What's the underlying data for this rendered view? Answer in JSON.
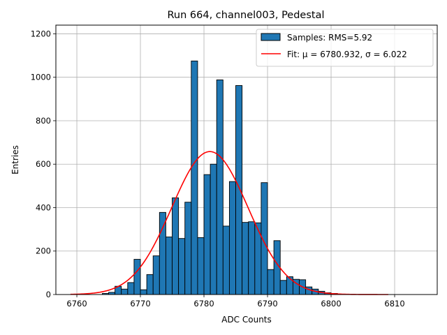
{
  "chart_data": {
    "type": "histogram",
    "title": "Run 664, channel003, Pedestal",
    "xlabel": "ADC Counts",
    "ylabel": "Entries",
    "xlim": [
      6756.7,
      6816.7
    ],
    "ylim": [
      0,
      1240
    ],
    "xticks": [
      6760,
      6770,
      6780,
      6790,
      6800,
      6810
    ],
    "yticks": [
      0,
      200,
      400,
      600,
      800,
      1000,
      1200
    ],
    "grid": true,
    "legend_position": "top-right",
    "bin_start": 6764,
    "bin_width": 1,
    "counts": [
      5,
      10,
      38,
      25,
      55,
      162,
      22,
      92,
      178,
      378,
      265,
      445,
      258,
      425,
      1075,
      262,
      552,
      600,
      988,
      315,
      520,
      962,
      332,
      335,
      330,
      515,
      115,
      248,
      65,
      82,
      70,
      68,
      35,
      25,
      15,
      8,
      5
    ],
    "fit": {
      "mu": 6780.932,
      "sigma": 6.022,
      "amplitude": 658,
      "x_range": [
        6759,
        6809
      ]
    },
    "legend": [
      {
        "label": "Samples: RMS=5.92",
        "kind": "patch",
        "color": "#1f77b4"
      },
      {
        "label": "Fit: μ = 6780.932, σ = 6.022",
        "kind": "line",
        "color": "#ff0000"
      }
    ],
    "colors": {
      "bar": "#1f77b4",
      "bar_edge": "#000000",
      "fit": "#ff0000",
      "grid": "#b0b0b0"
    }
  }
}
